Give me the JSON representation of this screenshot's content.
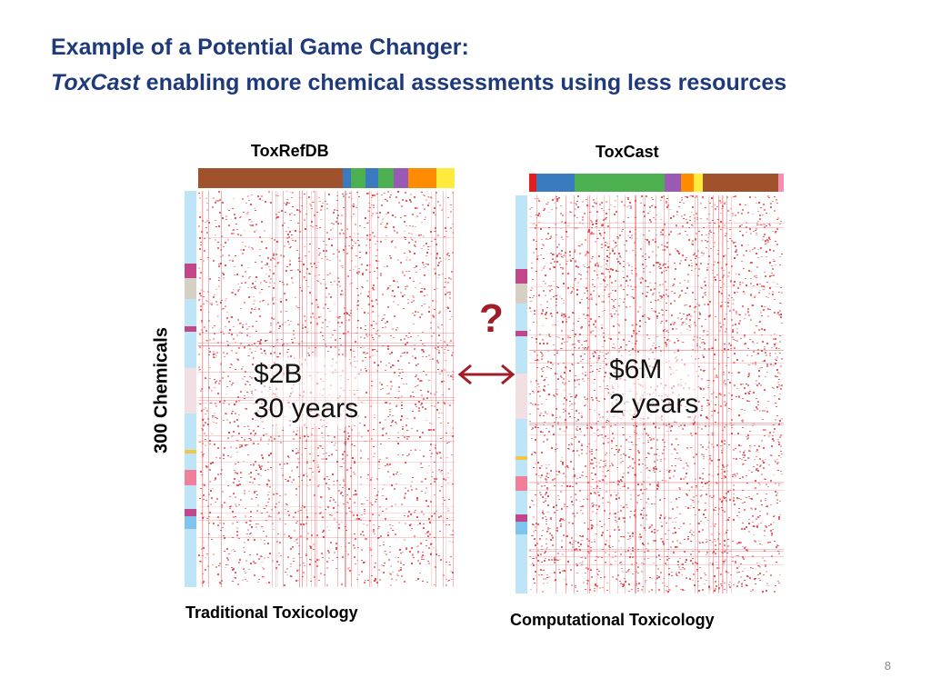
{
  "slide": {
    "title_line1": "Example of a Potential Game Changer:",
    "title_line2_em": "ToxCast",
    "title_line2_rest": " enabling more chemical assessments using less resources",
    "page_number": "8"
  },
  "left_panel": {
    "header": "ToxRefDB",
    "footer": "Traditional Toxicology",
    "cost": "$2B",
    "time": "30 years",
    "top_band_colors": [
      "#a0522d",
      "#a0522d",
      "#3a7bbf",
      "#4caf50",
      "#3a7bbf",
      "#4caf50",
      "#9b59b6",
      "#ff8c00",
      "#ffeb3b"
    ],
    "side_band_colors": [
      "#bde5f7",
      "#c2478a",
      "#d6d0c4",
      "#bde5f7",
      "#c2478a",
      "#bde5f7",
      "#f2dfe4",
      "#bde5f7",
      "#f4c542",
      "#bde5f7",
      "#f07f9a",
      "#bde5f7",
      "#c2478a",
      "#7fc4ef",
      "#bde5f7"
    ]
  },
  "right_panel": {
    "header": "ToxCast",
    "footer": "Computational Toxicology",
    "cost": "$6M",
    "time": "2 years",
    "top_band_colors": [
      "#e02020",
      "#3a7bbf",
      "#4caf50",
      "#9b59b6",
      "#ff8c00",
      "#ffeb3b",
      "#a0522d",
      "#f48fb1"
    ],
    "side_band_colors": [
      "#bde5f7",
      "#c2478a",
      "#d6d0c4",
      "#bde5f7",
      "#c2478a",
      "#bde5f7",
      "#f2dfe4",
      "#bde5f7",
      "#f4c542",
      "#bde5f7",
      "#f07f9a",
      "#bde5f7",
      "#c2478a",
      "#7fc4ef",
      "#bde5f7"
    ]
  },
  "y_axis_label": "300  Chemicals",
  "question_mark": "?",
  "heatmap_color": "#e8484f",
  "arrow_color": "#a01d28"
}
